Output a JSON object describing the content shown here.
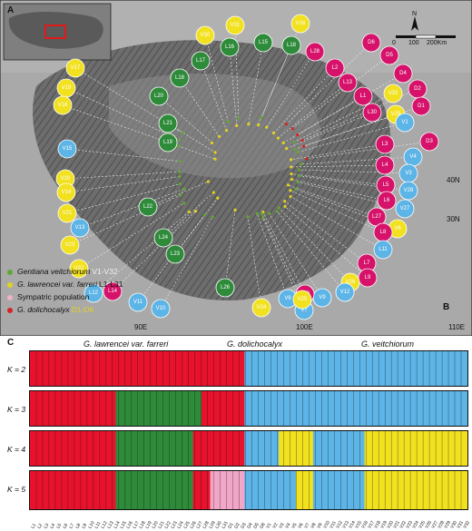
{
  "panel_labels": {
    "map": "A",
    "inset_location": "B",
    "structure": "C"
  },
  "scale_bar": {
    "north": "N",
    "ticks": [
      "0",
      "100",
      "200Km"
    ]
  },
  "coordinates": {
    "lat_40": "40N",
    "lat_30": "30N",
    "lon_90": "90E",
    "lon_100": "100E",
    "lon_110": "110E"
  },
  "legend": [
    {
      "name": "Gentiana veitchiorum",
      "range": "V1-V32",
      "color": "#5fa832"
    },
    {
      "name": "G. lawrencei var. farreri",
      "range": "L1-L31",
      "color": "#e3d21d"
    },
    {
      "name": "Sympatric population",
      "range": "",
      "color": "#f2b2c4"
    },
    {
      "name": "G. dolichocalyx",
      "range": "D1-D6",
      "color": "#d42424"
    }
  ],
  "colors": {
    "green": "#2e8b3a",
    "yellow": "#f2e11f",
    "blue": "#5db4e6",
    "magenta": "#d6126a",
    "red": "#e8122d",
    "pink": "#f1a6c8"
  },
  "map_circles": [
    {
      "label": "V31",
      "fill": "#f2e11f"
    },
    {
      "label": "V16",
      "fill": "#f2e11f"
    },
    {
      "label": "V30",
      "fill": "#f2e11f"
    },
    {
      "label": "L16",
      "fill": "#2e8b3a"
    },
    {
      "label": "L15",
      "fill": "#2e8b3a"
    },
    {
      "label": "L18",
      "fill": "#2e8b3a"
    },
    {
      "label": "L17",
      "fill": "#2e8b3a"
    },
    {
      "label": "L28",
      "fill": "#d6126a"
    },
    {
      "label": "D6",
      "fill": "#d6126a"
    },
    {
      "label": "L2",
      "fill": "#d6126a"
    },
    {
      "label": "D5",
      "fill": "#d6126a"
    },
    {
      "label": "V17",
      "fill": "#f2e11f"
    },
    {
      "label": "L13",
      "fill": "#d6126a"
    },
    {
      "label": "D4",
      "fill": "#d6126a"
    },
    {
      "label": "L18",
      "fill": "#2e8b3a"
    },
    {
      "label": "V19",
      "fill": "#f2e11f"
    },
    {
      "label": "D2",
      "fill": "#d6126a"
    },
    {
      "label": "L1",
      "fill": "#d6126a"
    },
    {
      "label": "L20",
      "fill": "#2e8b3a"
    },
    {
      "label": "V32",
      "fill": "#f2e11f"
    },
    {
      "label": "V18",
      "fill": "#f2e11f"
    },
    {
      "label": "D1",
      "fill": "#d6126a"
    },
    {
      "label": "L30",
      "fill": "#d6126a"
    },
    {
      "label": "V29",
      "fill": "#f2e11f"
    },
    {
      "label": "L21",
      "fill": "#2e8b3a"
    },
    {
      "label": "V1",
      "fill": "#5db4e6"
    },
    {
      "label": "L19",
      "fill": "#2e8b3a"
    },
    {
      "label": "L3",
      "fill": "#d6126a"
    },
    {
      "label": "D3",
      "fill": "#d6126a"
    },
    {
      "label": "V15",
      "fill": "#5db4e6"
    },
    {
      "label": "V4",
      "fill": "#5db4e6"
    },
    {
      "label": "L4",
      "fill": "#d6126a"
    },
    {
      "label": "V3",
      "fill": "#5db4e6"
    },
    {
      "label": "V20",
      "fill": "#f2e11f"
    },
    {
      "label": "L5",
      "fill": "#d6126a"
    },
    {
      "label": "V28",
      "fill": "#5db4e6"
    },
    {
      "label": "V14",
      "fill": "#f2e11f"
    },
    {
      "label": "L6",
      "fill": "#d6126a"
    },
    {
      "label": "V27",
      "fill": "#5db4e6"
    },
    {
      "label": "L22",
      "fill": "#2e8b3a"
    },
    {
      "label": "V21",
      "fill": "#f2e11f"
    },
    {
      "label": "L27",
      "fill": "#d6126a"
    },
    {
      "label": "V13",
      "fill": "#5db4e6"
    },
    {
      "label": "V6",
      "fill": "#f2e11f"
    },
    {
      "label": "L8",
      "fill": "#d6126a"
    },
    {
      "label": "L24",
      "fill": "#2e8b3a"
    },
    {
      "label": "V23",
      "fill": "#f2e11f"
    },
    {
      "label": "L11",
      "fill": "#5db4e6"
    },
    {
      "label": "L23",
      "fill": "#2e8b3a"
    },
    {
      "label": "L7",
      "fill": "#d6126a"
    },
    {
      "label": "V22",
      "fill": "#f2e11f"
    },
    {
      "label": "L9",
      "fill": "#d6126a"
    },
    {
      "label": "V26",
      "fill": "#f2e11f"
    },
    {
      "label": "L26",
      "fill": "#2e8b3a"
    },
    {
      "label": "V12",
      "fill": "#5db4e6"
    },
    {
      "label": "L12",
      "fill": "#5db4e6"
    },
    {
      "label": "V9",
      "fill": "#5db4e6"
    },
    {
      "label": "V8",
      "fill": "#5db4e6"
    },
    {
      "label": "V24",
      "fill": "#f2e11f"
    },
    {
      "label": "L14",
      "fill": "#d6126a"
    },
    {
      "label": "L10",
      "fill": "#d6126a"
    },
    {
      "label": "V7",
      "fill": "#5db4e6"
    },
    {
      "label": "V11",
      "fill": "#5db4e6"
    },
    {
      "label": "V25",
      "fill": "#f2e11f"
    },
    {
      "label": "V10",
      "fill": "#5db4e6"
    }
  ],
  "structure": {
    "group_titles": [
      "G. lawrencei var. farreri",
      "G. dolichocalyx",
      "G. veitchiorum"
    ],
    "rows": [
      {
        "k_label": "K = 2",
        "segments": [
          {
            "count": 50,
            "color": "#e8122d"
          },
          {
            "count": 52,
            "color": "#5db4e6"
          }
        ]
      },
      {
        "k_label": "K = 3",
        "segments": [
          {
            "count": 20,
            "color": "#e8122d"
          },
          {
            "count": 20,
            "color": "#2e8b3a"
          },
          {
            "count": 10,
            "color": "#e8122d"
          },
          {
            "count": 52,
            "color": "#5db4e6"
          }
        ]
      },
      {
        "k_label": "K = 4",
        "segments": [
          {
            "count": 20,
            "color": "#e8122d"
          },
          {
            "count": 18,
            "color": "#2e8b3a"
          },
          {
            "count": 12,
            "color": "#e8122d"
          },
          {
            "count": 8,
            "color": "#5db4e6"
          },
          {
            "count": 8,
            "color": "#f2e11f"
          },
          {
            "count": 12,
            "color": "#5db4e6"
          },
          {
            "count": 24,
            "color": "#f2e11f"
          }
        ]
      },
      {
        "k_label": "K = 5",
        "segments": [
          {
            "count": 20,
            "color": "#e8122d"
          },
          {
            "count": 18,
            "color": "#2e8b3a"
          },
          {
            "count": 4,
            "color": "#e8122d"
          },
          {
            "count": 8,
            "color": "#f1a6c8"
          },
          {
            "count": 12,
            "color": "#5db4e6"
          },
          {
            "count": 4,
            "color": "#f2e11f"
          },
          {
            "count": 12,
            "color": "#5db4e6"
          },
          {
            "count": 24,
            "color": "#f2e11f"
          }
        ]
      }
    ],
    "x_labels": [
      "L1",
      "L2",
      "L3",
      "L4",
      "L5",
      "L6",
      "L7",
      "L8",
      "L9",
      "L10",
      "L11",
      "L12",
      "L13",
      "L14",
      "L15",
      "L16",
      "L17",
      "L18",
      "L19",
      "L20",
      "L21",
      "L22",
      "L23",
      "L24",
      "L25",
      "L26",
      "L27",
      "L28",
      "L29",
      "L30",
      "L31",
      "D1",
      "D2",
      "D3",
      "D4",
      "D5",
      "D6",
      "V1",
      "V2",
      "V3",
      "V4",
      "V5",
      "V6",
      "V7",
      "V8",
      "V9",
      "V10",
      "V11",
      "V12",
      "V13",
      "V14",
      "V15",
      "V16",
      "V17",
      "V18",
      "V19",
      "V20",
      "V21",
      "V22",
      "V23",
      "V24",
      "V25",
      "V26",
      "V27",
      "V28",
      "V29",
      "V30",
      "V31",
      "V32"
    ]
  }
}
